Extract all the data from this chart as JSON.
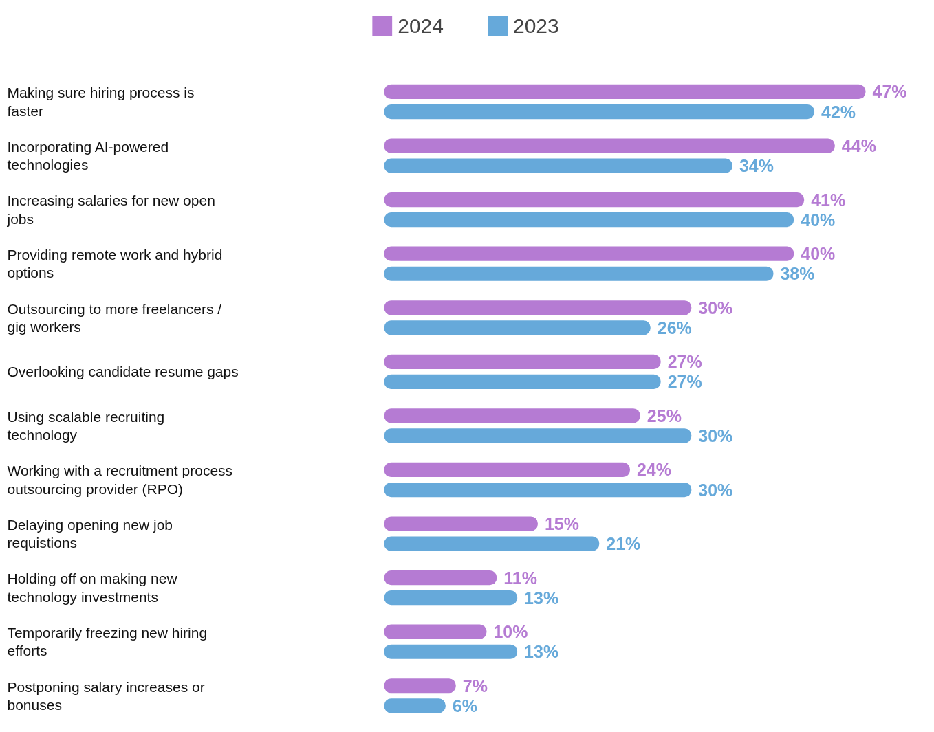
{
  "chart_data": {
    "type": "bar",
    "orientation": "horizontal",
    "legend": "top",
    "categories": [
      "Making sure hiring process is faster",
      "Incorporating AI-powered technologies",
      "Increasing salaries for new open jobs",
      "Providing remote work and hybrid options",
      "Outsourcing to more freelancers / gig workers",
      "Overlooking candidate resume gaps",
      "Using scalable recruiting technology",
      "Working with a recruitment process outsourcing provider (RPO)",
      "Delaying opening new job requistions",
      "Holding off on making new technology investments",
      "Temporarily freezing new hiring efforts",
      "Postponing salary increases or bonuses"
    ],
    "series": [
      {
        "name": "2024",
        "color": "#b57bd3",
        "values": [
          47,
          44,
          41,
          40,
          30,
          27,
          25,
          24,
          15,
          11,
          10,
          7
        ],
        "value_labels": [
          "47%",
          "44%",
          "41%",
          "40%",
          "30%",
          "27%",
          "25%",
          "24%",
          "15%",
          "11%",
          "10%",
          "7%"
        ]
      },
      {
        "name": "2023",
        "color": "#66a9da",
        "values": [
          42,
          34,
          40,
          38,
          26,
          27,
          30,
          30,
          21,
          13,
          13,
          6
        ],
        "value_labels": [
          "42%",
          "34%",
          "40%",
          "38%",
          "26%",
          "27%",
          "30%",
          "30%",
          "21%",
          "13%",
          "13%",
          "6%"
        ]
      }
    ]
  }
}
